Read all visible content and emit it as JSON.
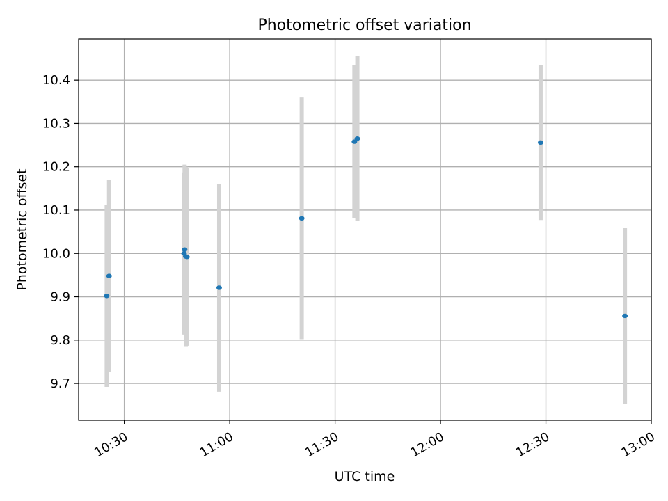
{
  "chart_data": {
    "type": "scatter",
    "title": "Photometric offset variation",
    "xlabel": "UTC time",
    "ylabel": "Photometric offset",
    "x_is_time": true,
    "xlim": [
      "10:17",
      "13:00"
    ],
    "ylim": [
      9.615,
      10.495
    ],
    "grid": true,
    "legend": "none",
    "x_ticks": [
      "10:30",
      "11:00",
      "11:30",
      "12:00",
      "12:30",
      "13:00"
    ],
    "y_ticks": [
      "9.7",
      "9.8",
      "9.9",
      "10.0",
      "10.1",
      "10.2",
      "10.3",
      "10.4"
    ],
    "colors": {
      "point": "#1f77b4",
      "errorbar": "#d3d3d3",
      "grid": "#b0b0b0",
      "axes": "#000000"
    },
    "series": [
      {
        "points": [
          {
            "x": "10:25:00",
            "y": 9.902,
            "yerr": 0.21
          },
          {
            "x": "10:25:40",
            "y": 9.948,
            "yerr": 0.222
          },
          {
            "x": "10:47:00",
            "y": 10.0,
            "yerr": 0.187
          },
          {
            "x": "10:47:10",
            "y": 10.009,
            "yerr": 0.196
          },
          {
            "x": "10:47:30",
            "y": 9.993,
            "yerr": 0.207
          },
          {
            "x": "10:47:50",
            "y": 9.992,
            "yerr": 0.205
          },
          {
            "x": "10:57:00",
            "y": 9.921,
            "yerr": 0.24
          },
          {
            "x": "11:20:30",
            "y": 10.081,
            "yerr": 0.279
          },
          {
            "x": "11:35:30",
            "y": 10.258,
            "yerr": 0.177
          },
          {
            "x": "11:36:20",
            "y": 10.265,
            "yerr": 0.19
          },
          {
            "x": "12:28:30",
            "y": 10.256,
            "yerr": 0.179
          },
          {
            "x": "12:52:30",
            "y": 9.856,
            "yerr": 0.203
          }
        ]
      }
    ]
  }
}
